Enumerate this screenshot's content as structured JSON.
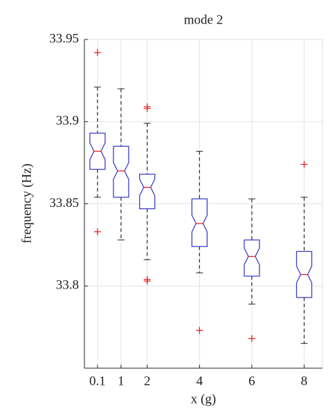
{
  "chart_data": {
    "type": "box",
    "title": "mode 2",
    "xlabel": "x (g)",
    "ylabel": "frequency (Hz)",
    "xlim": [
      -0.4,
      8.7
    ],
    "xticks": [
      0.1,
      1,
      2,
      4,
      6,
      8
    ],
    "ylim": [
      33.75,
      33.95
    ],
    "yticks": [
      33.8,
      33.85,
      33.9,
      33.95
    ],
    "grid": true,
    "box_color": "#3c3cc8",
    "median_color": "#e02020",
    "whisker_color": "#222222",
    "flier_color": "#e02020",
    "boxes": [
      {
        "x": 0.1,
        "whislo": 33.854,
        "q1": 33.871,
        "med": 33.882,
        "q3": 33.893,
        "whishi": 33.921,
        "fliers": [
          33.942,
          33.833
        ]
      },
      {
        "x": 1,
        "whislo": 33.828,
        "q1": 33.854,
        "med": 33.87,
        "q3": 33.885,
        "whishi": 33.92,
        "fliers": []
      },
      {
        "x": 2,
        "whislo": 33.816,
        "q1": 33.847,
        "med": 33.86,
        "q3": 33.868,
        "whishi": 33.899,
        "fliers": [
          33.908,
          33.909,
          33.804,
          33.803
        ]
      },
      {
        "x": 4,
        "whislo": 33.808,
        "q1": 33.824,
        "med": 33.838,
        "q3": 33.853,
        "whishi": 33.882,
        "fliers": [
          33.773
        ]
      },
      {
        "x": 6,
        "whislo": 33.789,
        "q1": 33.806,
        "med": 33.818,
        "q3": 33.828,
        "whishi": 33.853,
        "fliers": [
          33.768
        ]
      },
      {
        "x": 8,
        "whislo": 33.765,
        "q1": 33.793,
        "med": 33.807,
        "q3": 33.821,
        "whishi": 33.854,
        "fliers": [
          33.874
        ]
      }
    ]
  }
}
